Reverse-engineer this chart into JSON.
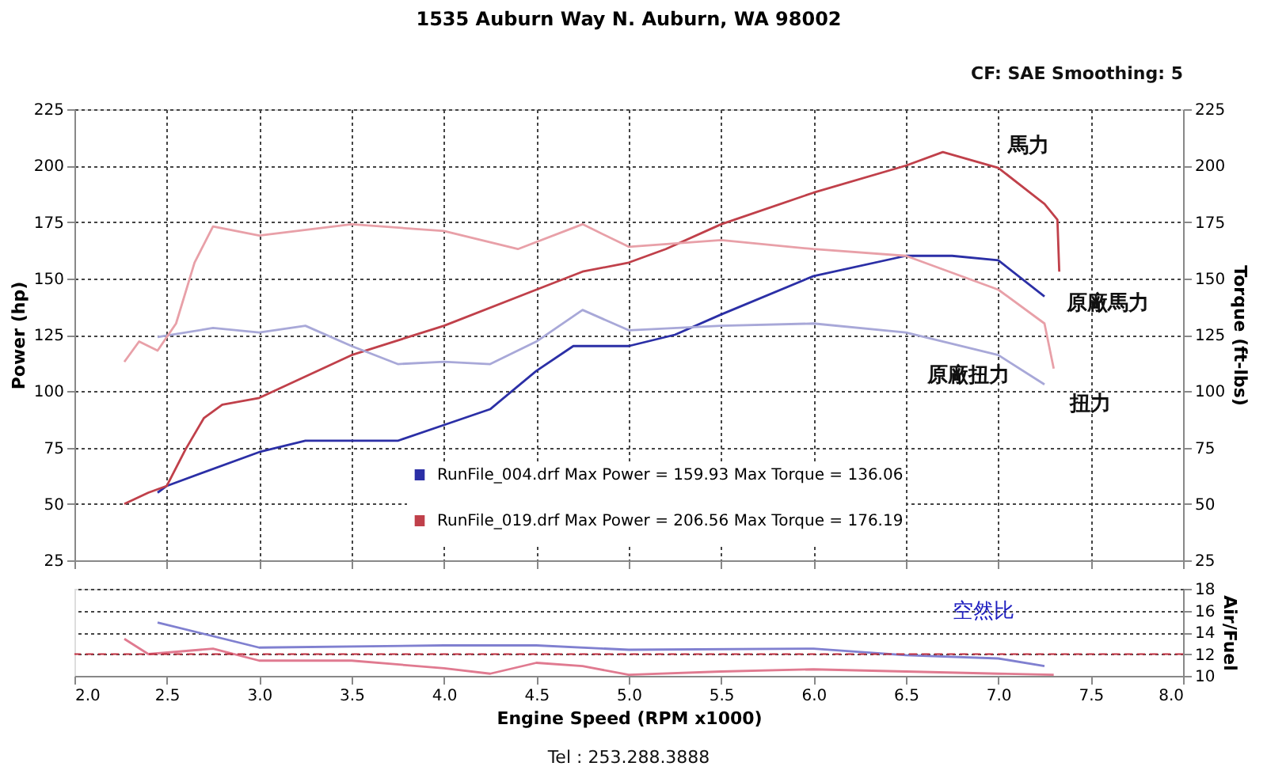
{
  "chart_data": [
    {
      "type": "line",
      "title": "1535 Auburn Way N. Auburn, WA 98002",
      "ylabel": "Power (hp)",
      "y2label": "Torque (ft-lbs)",
      "xlim": [
        2,
        8
      ],
      "xticks": [
        2,
        2.5,
        3,
        3.5,
        4,
        4.5,
        5,
        5.5,
        6,
        6.5,
        7,
        7.5,
        8
      ],
      "ylim": [
        25,
        225
      ],
      "yticks": [
        25,
        50,
        75,
        100,
        125,
        150,
        175,
        200,
        225
      ],
      "y2lim": [
        25,
        225
      ],
      "y2ticks": [
        25,
        50,
        75,
        100,
        125,
        150,
        175,
        200,
        225
      ],
      "tick_labels": "y",
      "grid": true,
      "legend": "bottom",
      "marker": "none",
      "line_style": "solid",
      "series": [
        {
          "name": "RunFile_004.drf Max Power = 159.93 Max Torque = 136.06",
          "color": "#2b2fa6",
          "x": [
            2.45,
            2.5,
            3.0,
            3.25,
            3.5,
            3.75,
            4.0,
            4.25,
            4.5,
            4.7,
            5.0,
            5.25,
            5.5,
            6.0,
            6.5,
            6.75,
            7.0,
            7.25
          ],
          "values": [
            55,
            58,
            73,
            78,
            78,
            78,
            85,
            92,
            109,
            120,
            120,
            125,
            134,
            151,
            160,
            160,
            158,
            142
          ]
        },
        {
          "name": "RunFile_019.drf Max Power = 206.56 Max Torque = 176.19",
          "color": "#c0404a",
          "x": [
            2.27,
            2.4,
            2.5,
            2.6,
            2.7,
            2.8,
            3.0,
            3.5,
            4.0,
            4.5,
            4.75,
            5.0,
            5.2,
            5.5,
            6.0,
            6.5,
            6.7,
            7.0,
            7.25,
            7.32,
            7.33
          ],
          "values": [
            50,
            55,
            58,
            74,
            88,
            94,
            97,
            116,
            129,
            145,
            153,
            157,
            163,
            174,
            188,
            200,
            206,
            199,
            183,
            176,
            153
          ]
        },
        {
          "color": "#a8a8d8",
          "axis": "y2",
          "x": [
            2.45,
            2.75,
            3.0,
            3.25,
            3.5,
            3.75,
            4.0,
            4.25,
            4.5,
            4.75,
            5.0,
            5.5,
            6.0,
            6.5,
            7.0,
            7.25
          ],
          "values": [
            124,
            128,
            126,
            129,
            120,
            112,
            113,
            112,
            122,
            136,
            127,
            129,
            130,
            126,
            116,
            103
          ]
        },
        {
          "color": "#e8a0a8",
          "axis": "y2",
          "x": [
            2.27,
            2.35,
            2.45,
            2.55,
            2.65,
            2.75,
            3.0,
            3.5,
            4.0,
            4.4,
            4.75,
            5.0,
            5.5,
            6.0,
            6.5,
            7.0,
            7.25,
            7.3
          ],
          "values": [
            113,
            122,
            118,
            130,
            157,
            173,
            169,
            174,
            171,
            163,
            174,
            164,
            167,
            163,
            160,
            145,
            130,
            110
          ]
        }
      ],
      "annotations": [
        "CF: SAE  Smoothing: 5",
        {
          "text": "馬力",
          "x": 6.95,
          "y": 199
        },
        {
          "text": "原廠馬力",
          "x": 7.25,
          "y": 142
        },
        {
          "text": "扭力",
          "x": 7.3,
          "y": 110
        },
        {
          "text": "原廠扭力",
          "x": 7.2,
          "y": 103
        }
      ]
    },
    {
      "type": "line",
      "xlabel": "Engine Speed (RPM x1000)",
      "y2label": "Air/Fuel",
      "xlim": [
        2,
        8
      ],
      "xticks": [
        {
          "value": 2,
          "label": "2.0"
        },
        {
          "value": 2.5,
          "label": "2.5"
        },
        {
          "value": 3,
          "label": "3.0"
        },
        {
          "value": 3.5,
          "label": "3.5"
        },
        {
          "value": 4,
          "label": "4.0"
        },
        {
          "value": 4.5,
          "label": "4.5"
        },
        {
          "value": 5,
          "label": "5.0"
        },
        {
          "value": 5.5,
          "label": "5.5"
        },
        {
          "value": 6,
          "label": "6.0"
        },
        {
          "value": 6.5,
          "label": "6.5"
        },
        {
          "value": 7,
          "label": "7.0"
        },
        {
          "value": 7.5,
          "label": "7.5"
        },
        {
          "value": 8,
          "label": "8.0"
        }
      ],
      "y2lim": [
        10,
        18
      ],
      "y2ticks": [
        10,
        12,
        14,
        16,
        18
      ],
      "grid": "y",
      "marker": "none",
      "line_style": "solid",
      "series": [
        {
          "color": "#8080d0",
          "axis": "y2",
          "x": [
            2.45,
            3.0,
            4.0,
            4.5,
            5.0,
            6.0,
            6.5,
            7.0,
            7.25
          ],
          "values": [
            14.9,
            12.6,
            12.8,
            12.8,
            12.4,
            12.5,
            11.9,
            11.6,
            10.9
          ]
        },
        {
          "color": "#e07a90",
          "axis": "y2",
          "x": [
            2.27,
            2.4,
            2.75,
            3.0,
            3.5,
            4.0,
            4.25,
            4.5,
            4.75,
            5.0,
            5.5,
            6.0,
            6.5,
            7.0,
            7.3
          ],
          "values": [
            13.4,
            12,
            12.5,
            11.4,
            11.4,
            10.7,
            10.2,
            11.2,
            10.9,
            10.1,
            10.4,
            10.6,
            10.4,
            10.2,
            10.1
          ]
        }
      ],
      "ref_lines": [
        {
          "axis": "y2",
          "value": 12,
          "color": "#c03040",
          "line_style": "dashed"
        }
      ],
      "annotations": [
        "空然比",
        "Tel : 253.288.3888"
      ]
    }
  ]
}
